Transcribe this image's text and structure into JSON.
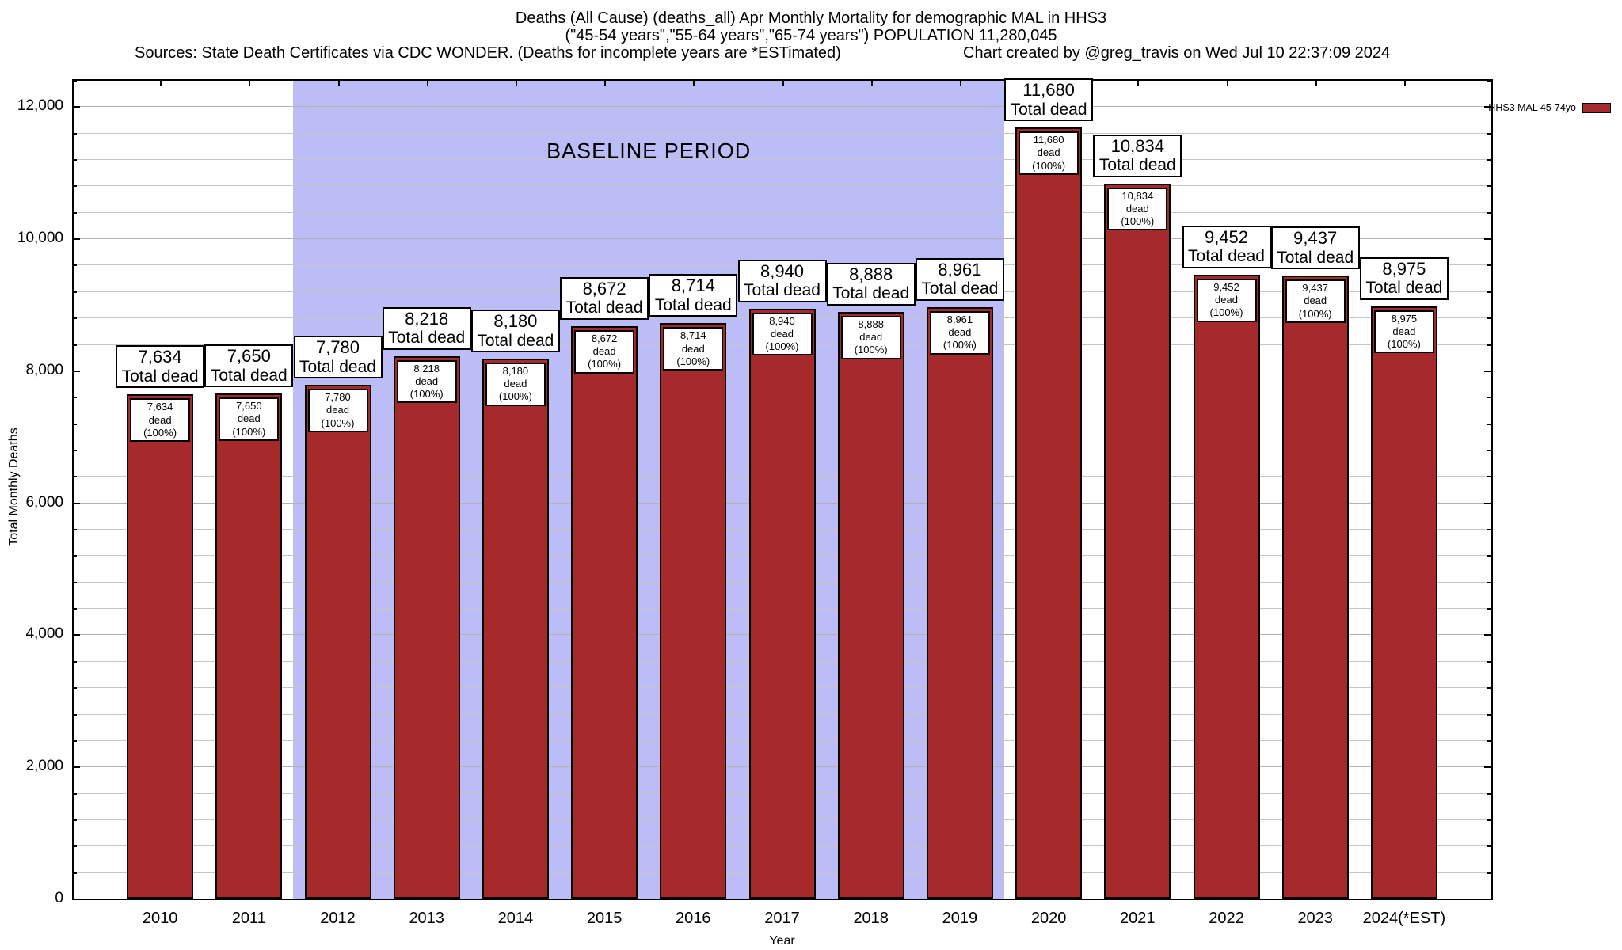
{
  "title": {
    "line1": "Deaths (All Cause) (deaths_all) Apr Monthly Mortality for demographic MAL in HHS3",
    "line2": "(\"45-54 years\",\"55-64 years\",\"65-74 years\") POPULATION 11,280,045",
    "sources": "Sources: State Death Certificates via CDC WONDER. (Deaths for incomplete years are *ESTimated)",
    "credit": "Chart created by @greg_travis on Wed Jul 10 22:37:09 2024"
  },
  "chart_data": {
    "type": "bar",
    "categories": [
      "2010",
      "2011",
      "2012",
      "2013",
      "2014",
      "2015",
      "2016",
      "2017",
      "2018",
      "2019",
      "2020",
      "2021",
      "2022",
      "2023",
      "2024(*EST)"
    ],
    "values": [
      7634,
      7650,
      7780,
      8218,
      8180,
      8672,
      8714,
      8940,
      8888,
      8961,
      11680,
      10834,
      9452,
      9437,
      8975
    ],
    "series_name": "HHS3 MAL 45-74yo",
    "title": "Deaths (All Cause) (deaths_all) Apr Monthly Mortality for demographic MAL in HHS3",
    "xlabel": "Year",
    "ylabel": "Total Monthly Deaths",
    "ylim": [
      0,
      12400
    ],
    "ytick_major": 2000,
    "ytick_minor": 400,
    "ytick_labels": [
      "0",
      "2,000",
      "4,000",
      "6,000",
      "8,000",
      "10,000",
      "12,000"
    ],
    "grid": "horizontal-only",
    "legend": {
      "label": "HHS3 MAL 45-74yo",
      "position": "top-right-outside"
    },
    "bar_color": "#a62a2c",
    "bar_border_color": "#000000",
    "grid_color": "#c6c6c6",
    "baseline_band": {
      "label": "BASELINE PERIOD",
      "start_category": "2012",
      "end_category": "2019",
      "color": "#bcbcf7"
    },
    "bar_top_label_suffix": "Total dead",
    "bar_inner_label_suffix": "dead (100%)"
  }
}
